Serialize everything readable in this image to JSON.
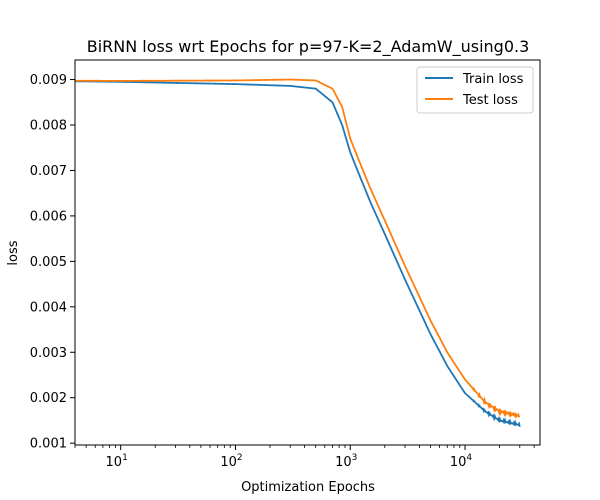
{
  "chart_data": {
    "type": "line",
    "title": "BiRNN loss wrt Epochs for p=97-K=2_AdamW_using0.3",
    "xlabel": "Optimization Epochs",
    "ylabel": "loss",
    "xscale": "log",
    "xlim": [
      4,
      45000
    ],
    "ylim": [
      0.00096,
      0.00943
    ],
    "x_ticks": [
      {
        "value": 10,
        "label": "10",
        "exp": "1"
      },
      {
        "value": 100,
        "label": "10",
        "exp": "2"
      },
      {
        "value": 1000,
        "label": "10",
        "exp": "3"
      },
      {
        "value": 10000,
        "label": "10",
        "exp": "4"
      }
    ],
    "y_ticks": [
      {
        "value": 0.001,
        "label": "0.001"
      },
      {
        "value": 0.002,
        "label": "0.002"
      },
      {
        "value": 0.003,
        "label": "0.003"
      },
      {
        "value": 0.004,
        "label": "0.004"
      },
      {
        "value": 0.005,
        "label": "0.005"
      },
      {
        "value": 0.006,
        "label": "0.006"
      },
      {
        "value": 0.007,
        "label": "0.007"
      },
      {
        "value": 0.008,
        "label": "0.008"
      },
      {
        "value": 0.009,
        "label": "0.009"
      }
    ],
    "grid": false,
    "legend_position": "top-right",
    "series": [
      {
        "name": "Train loss",
        "color": "#1f77b4",
        "x": [
          1,
          10,
          100,
          300,
          500,
          700,
          850,
          1000,
          1200,
          1500,
          2000,
          3000,
          5000,
          7000,
          10000,
          15000,
          20000,
          30000
        ],
        "y": [
          0.00898,
          0.00895,
          0.0089,
          0.00886,
          0.0088,
          0.0085,
          0.008,
          0.0074,
          0.0069,
          0.0063,
          0.0056,
          0.0046,
          0.0034,
          0.0027,
          0.0021,
          0.0017,
          0.0015,
          0.0014
        ]
      },
      {
        "name": "Test loss",
        "color": "#ff7f0e",
        "x": [
          1,
          10,
          100,
          300,
          500,
          700,
          850,
          1000,
          1200,
          1500,
          2000,
          3000,
          5000,
          7000,
          10000,
          15000,
          20000,
          30000
        ],
        "y": [
          0.00898,
          0.00897,
          0.00898,
          0.009,
          0.00898,
          0.0088,
          0.0084,
          0.0077,
          0.0072,
          0.0066,
          0.0059,
          0.0049,
          0.0037,
          0.003,
          0.0024,
          0.0019,
          0.0017,
          0.0016
        ]
      }
    ]
  }
}
